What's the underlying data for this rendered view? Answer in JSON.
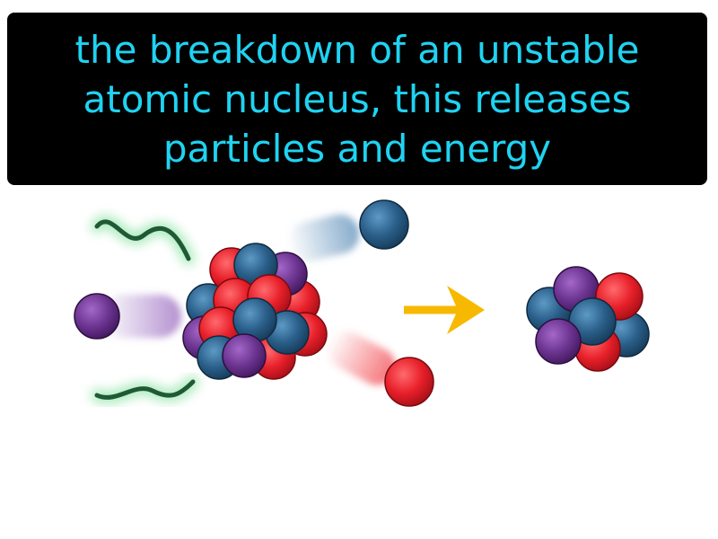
{
  "definition": {
    "lines": [
      "the breakdown of an unstable",
      "atomic nucleus, this releases",
      "particles and energy"
    ]
  },
  "colors": {
    "banner_background": "#000000",
    "banner_text": "#1fd3f2",
    "proton": "#e8202a",
    "neutron": "#2a5f8a",
    "purple_particle": "#6d3592",
    "wave": "#1f5a35",
    "wave_glow": "#62d883",
    "arrow": "#f7b900"
  },
  "icons": {
    "arrow": "right-arrow-icon"
  }
}
